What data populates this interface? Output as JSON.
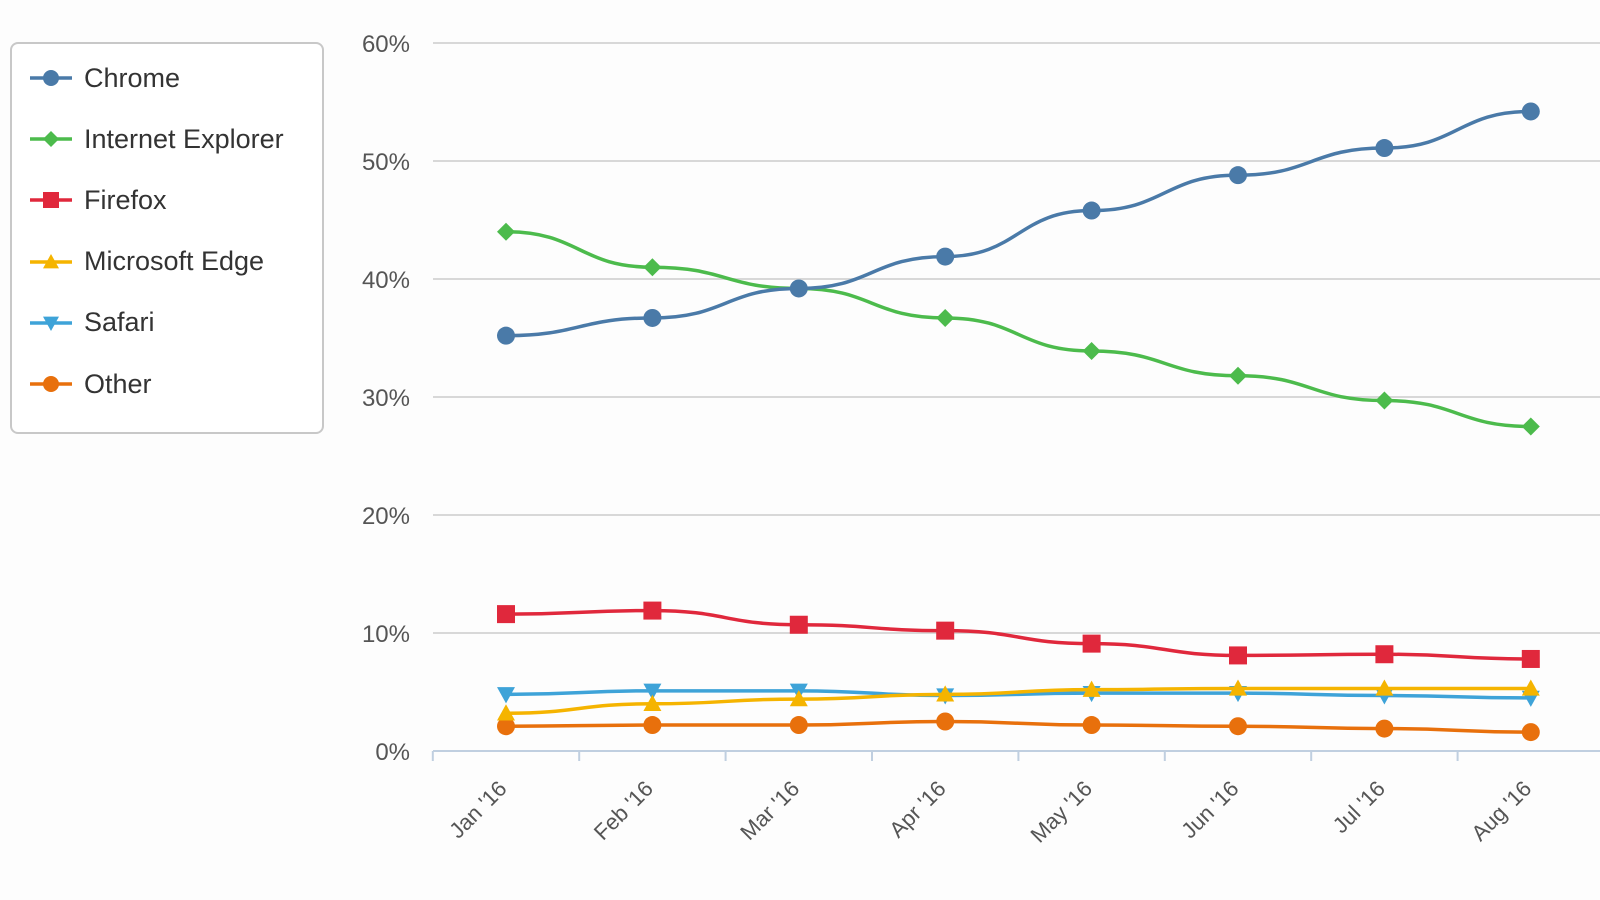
{
  "chart_data": {
    "type": "line",
    "title": "",
    "xlabel": "",
    "ylabel": "",
    "categories": [
      "Jan '16",
      "Feb '16",
      "Mar '16",
      "Apr '16",
      "May '16",
      "Jun '16",
      "Jul '16",
      "Aug '16"
    ],
    "y_ticks": [
      "0%",
      "10%",
      "20%",
      "30%",
      "40%",
      "50%",
      "60%"
    ],
    "ylim": [
      0,
      60
    ],
    "grid": true,
    "legend_position": "top-left",
    "series": [
      {
        "name": "Chrome",
        "color": "#4a7aa8",
        "marker": "circle",
        "values": [
          35.2,
          36.7,
          39.2,
          41.9,
          45.8,
          48.8,
          51.1,
          54.2
        ]
      },
      {
        "name": "Internet Explorer",
        "color": "#4cbb4c",
        "marker": "diamond",
        "values": [
          44.0,
          41.0,
          39.2,
          36.7,
          33.9,
          31.8,
          29.7,
          27.5
        ]
      },
      {
        "name": "Firefox",
        "color": "#e0283c",
        "marker": "square",
        "values": [
          11.6,
          11.9,
          10.7,
          10.2,
          9.1,
          8.1,
          8.2,
          7.8
        ]
      },
      {
        "name": "Microsoft Edge",
        "color": "#f5b400",
        "marker": "triangle-up",
        "values": [
          3.2,
          4.0,
          4.4,
          4.8,
          5.2,
          5.3,
          5.3,
          5.3
        ]
      },
      {
        "name": "Safari",
        "color": "#3ea3d8",
        "marker": "triangle-down",
        "values": [
          4.8,
          5.1,
          5.1,
          4.7,
          4.9,
          4.9,
          4.7,
          4.5
        ]
      },
      {
        "name": "Other",
        "color": "#e8700c",
        "marker": "circle",
        "values": [
          2.1,
          2.2,
          2.2,
          2.5,
          2.2,
          2.1,
          1.9,
          1.6
        ]
      }
    ]
  }
}
